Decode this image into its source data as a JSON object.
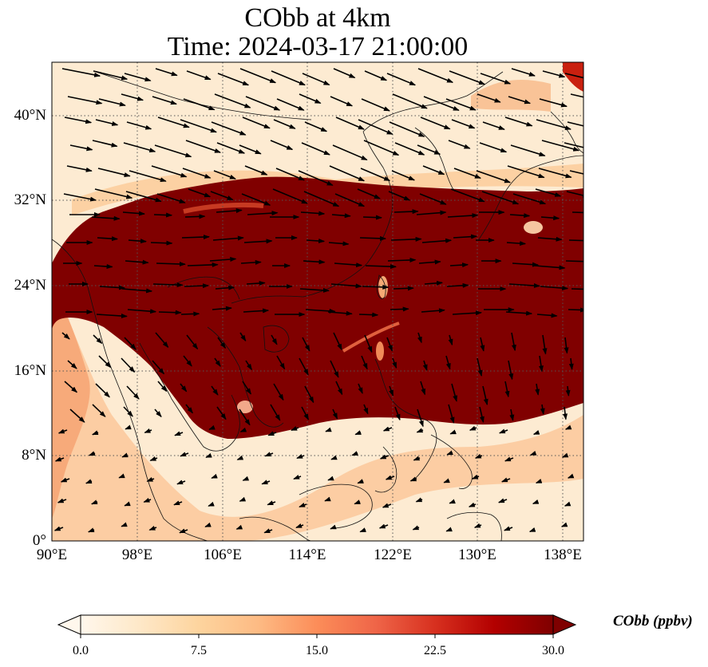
{
  "title": {
    "line1": "CObb at 4km",
    "line2": "Time: 2024-03-17 21:00:00"
  },
  "map": {
    "lon_range": [
      90,
      140
    ],
    "lat_range": [
      0,
      45
    ],
    "x_ticks": [
      "90°E",
      "98°E",
      "106°E",
      "114°E",
      "122°E",
      "130°E",
      "138°E"
    ],
    "y_ticks": [
      "0°",
      "8°N",
      "16°N",
      "24°N",
      "32°N",
      "40°N"
    ],
    "gridlines": "dotted",
    "coastlines": true,
    "wind_vectors": true
  },
  "colorbar": {
    "label": "CObb (ppbv)",
    "ticks": [
      "0.0",
      "7.5",
      "15.0",
      "22.5",
      "30.0"
    ],
    "range": [
      0,
      30
    ],
    "extend": "both",
    "colormap": [
      "#fff7ec",
      "#fee8c8",
      "#fdd49e",
      "#fdbb84",
      "#fc8d59",
      "#ef6548",
      "#d7301f",
      "#b30000",
      "#7f0000"
    ]
  }
}
